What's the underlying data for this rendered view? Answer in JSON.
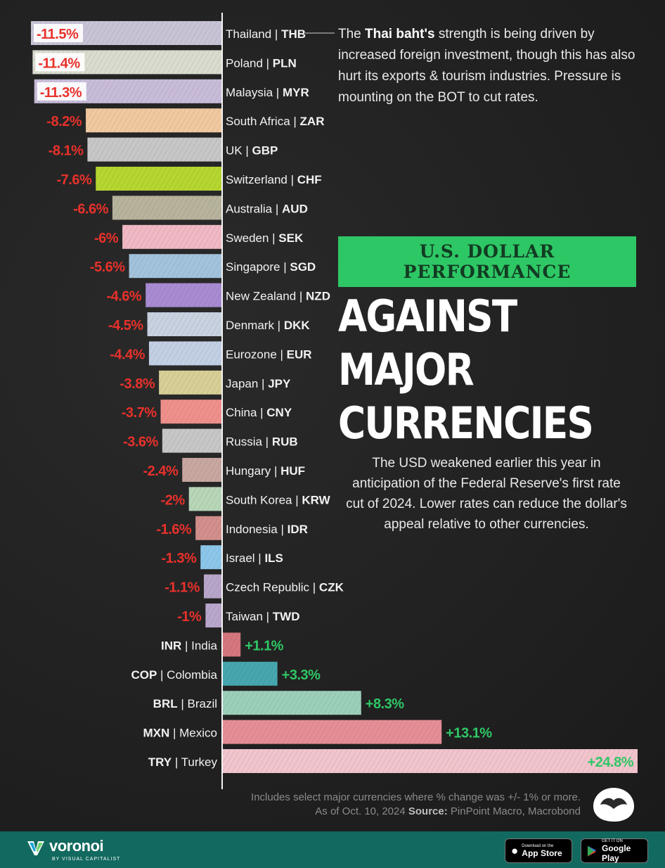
{
  "annotations": {
    "top_pre": "The ",
    "top_bold": "Thai baht's",
    "top_post": " strength is being driven by increased foreign investment, though this has also hurt its exports & tourism industries. Pressure is mounting on the BOT to cut rates.",
    "title_line1": "U.S. DOLLAR",
    "title_line2": "PERFORMANCE",
    "title_main_1": "AGAINST MAJOR",
    "title_main_2": "CURRENCIES",
    "mid": "The USD weakened earlier this year in anticipation of the Federal Reserve's first rate cut of 2024. Lower rates can reduce the dollar's appeal relative to other currencies."
  },
  "footnote": {
    "line1": "Includes select major currencies where % change was +/- 1% or more.",
    "line2_pre": "As of Oct. 10, 2024 ",
    "line2_bold": "Source:",
    "line2_post": " PinPoint Macro, Macrobond"
  },
  "footer": {
    "brand": "voronoi",
    "brand_sub": "BY VISUAL CAPITALIST",
    "appstore_small": "Download on the",
    "appstore_big": "App Store",
    "googleplay_small": "GET IT ON",
    "googleplay_big": "Google Play"
  },
  "colors": {
    "negative": "#e8312b",
    "positive": "#2ec765",
    "accent": "#2ec765",
    "footer": "#12695f"
  },
  "chart_data": {
    "type": "bar",
    "orientation": "horizontal-diverging",
    "unit": "%",
    "categories": [
      {
        "country": "Thailand",
        "code": "THB"
      },
      {
        "country": "Poland",
        "code": "PLN"
      },
      {
        "country": "Malaysia",
        "code": "MYR"
      },
      {
        "country": "South Africa",
        "code": "ZAR"
      },
      {
        "country": "UK",
        "code": "GBP"
      },
      {
        "country": "Switzerland",
        "code": "CHF"
      },
      {
        "country": "Australia",
        "code": "AUD"
      },
      {
        "country": "Sweden",
        "code": "SEK"
      },
      {
        "country": "Singapore",
        "code": "SGD"
      },
      {
        "country": "New Zealand",
        "code": "NZD"
      },
      {
        "country": "Denmark",
        "code": "DKK"
      },
      {
        "country": "Eurozone",
        "code": "EUR"
      },
      {
        "country": "Japan",
        "code": "JPY"
      },
      {
        "country": "China",
        "code": "CNY"
      },
      {
        "country": "Russia",
        "code": "RUB"
      },
      {
        "country": "Hungary",
        "code": "HUF"
      },
      {
        "country": "South Korea",
        "code": "KRW"
      },
      {
        "country": "Indonesia",
        "code": "IDR"
      },
      {
        "country": "Israel",
        "code": "ILS"
      },
      {
        "country": "Czech Republic",
        "code": "CZK"
      },
      {
        "country": "Taiwan",
        "code": "TWD"
      },
      {
        "country": "India",
        "code": "INR"
      },
      {
        "country": "Colombia",
        "code": "COP"
      },
      {
        "country": "Brazil",
        "code": "BRL"
      },
      {
        "country": "Mexico",
        "code": "MXN"
      },
      {
        "country": "Turkey",
        "code": "TRY"
      }
    ],
    "values": [
      -11.5,
      -11.4,
      -11.3,
      -8.2,
      -8.1,
      -7.6,
      -6.6,
      -6,
      -5.6,
      -4.6,
      -4.5,
      -4.4,
      -3.8,
      -3.7,
      -3.6,
      -2.4,
      -2,
      -1.6,
      -1.3,
      -1.1,
      -1,
      1.1,
      3.3,
      8.3,
      13.1,
      24.8
    ],
    "value_labels": [
      "-11.5%",
      "-11.4%",
      "-11.3%",
      "-8.2%",
      "-8.1%",
      "-7.6%",
      "-6.6%",
      "-6%",
      "-5.6%",
      "-4.6%",
      "-4.5%",
      "-4.4%",
      "-3.8%",
      "-3.7%",
      "-3.6%",
      "-2.4%",
      "-2%",
      "-1.6%",
      "-1.3%",
      "-1.1%",
      "-1%",
      "+1.1%",
      "+3.3%",
      "+8.3%",
      "+13.1%",
      "+24.8%"
    ],
    "bar_tints": [
      "#c9c3d6",
      "#d9dccf",
      "#c8bcd9",
      "#f1c9a0",
      "#c7c7c7",
      "#b6d630",
      "#b7b39c",
      "#f0b9c4",
      "#a3c3dc",
      "#a98bd3",
      "#c8d2e0",
      "#c3cfe4",
      "#d8cf96",
      "#f0908c",
      "#c7c7c7",
      "#c9a7a1",
      "#b8d6b8",
      "#d28f8c",
      "#8cc7ea",
      "#b7a6c9",
      "#b9a7cc",
      "#d6767e",
      "#47a7b0",
      "#9ccfb9",
      "#e68e96",
      "#f2c4cc"
    ],
    "title": "U.S. DOLLAR PERFORMANCE AGAINST MAJOR CURRENCIES"
  }
}
